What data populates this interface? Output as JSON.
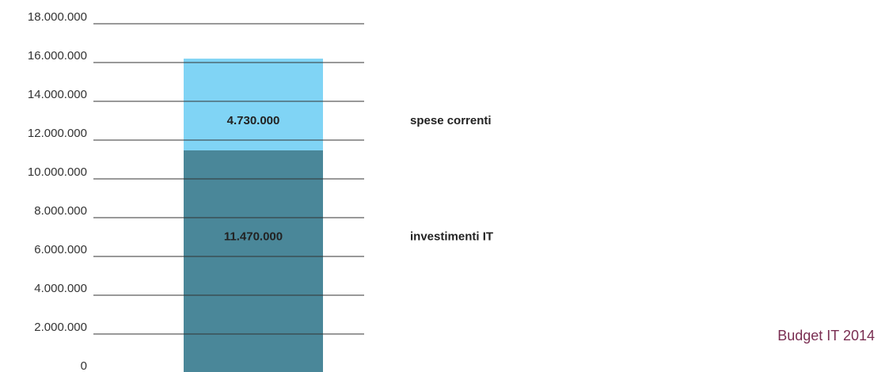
{
  "chart_data": {
    "type": "stacked-bar",
    "title": "Budget IT 2014",
    "series": [
      {
        "name": "investimenti IT",
        "color": "#4a8799",
        "values": [
          11470000
        ],
        "value_labels": [
          "11.470.000"
        ]
      },
      {
        "name": "spese correnti",
        "color": "#80d4f5",
        "values": [
          4730000
        ],
        "value_labels": [
          "4.730.000"
        ]
      }
    ],
    "ylim": [
      0,
      18000000
    ],
    "yticks": [
      0,
      {
        "value": 2000000,
        "label": "2.000.000"
      },
      {
        "value": 4000000,
        "label": "4.000.000"
      },
      {
        "value": 6000000,
        "label": "6.000.000"
      },
      {
        "value": 8000000,
        "label": "8.000.000"
      },
      {
        "value": 10000000,
        "label": "10.000.000"
      },
      {
        "value": 12000000,
        "label": "12.000.000"
      },
      {
        "value": 14000000,
        "label": "14.000.000"
      },
      {
        "value": 16000000,
        "label": "16.000.000"
      },
      {
        "value": 18000000,
        "label": "18.000.000"
      }
    ],
    "grid": true
  }
}
